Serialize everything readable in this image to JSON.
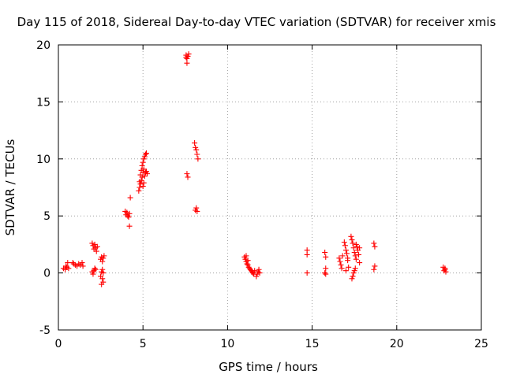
{
  "chart_data": {
    "type": "scatter",
    "title": "Day 115 of 2018, Sidereal Day-to-day VTEC variation (SDTVAR) for receiver xmis",
    "xlabel": "GPS time / hours",
    "ylabel": "SDTVAR / TECUs",
    "xlim": [
      0,
      25
    ],
    "ylim": [
      -5,
      20
    ],
    "xticks": [
      0,
      5,
      10,
      15,
      20,
      25
    ],
    "yticks": [
      -5,
      0,
      5,
      10,
      15,
      20
    ],
    "grid": true,
    "marker": "plus",
    "color": "#ff0000",
    "series": [
      {
        "name": "SDTVAR",
        "points": [
          [
            0.3,
            0.4
          ],
          [
            0.4,
            0.3
          ],
          [
            0.45,
            0.6
          ],
          [
            0.5,
            0.5
          ],
          [
            0.55,
            0.9
          ],
          [
            0.6,
            0.4
          ],
          [
            0.85,
            0.9
          ],
          [
            0.9,
            0.8
          ],
          [
            1.0,
            0.7
          ],
          [
            1.1,
            0.6
          ],
          [
            1.2,
            0.8
          ],
          [
            1.3,
            0.7
          ],
          [
            1.4,
            0.9
          ],
          [
            1.45,
            0.6
          ],
          [
            2.0,
            2.6
          ],
          [
            2.05,
            2.4
          ],
          [
            2.1,
            2.1
          ],
          [
            2.15,
            2.5
          ],
          [
            2.2,
            2.2
          ],
          [
            2.25,
            1.9
          ],
          [
            2.3,
            2.3
          ],
          [
            2.0,
            0.1
          ],
          [
            2.05,
            -0.1
          ],
          [
            2.1,
            0.2
          ],
          [
            2.15,
            0.4
          ],
          [
            2.2,
            0.3
          ],
          [
            2.5,
            1.2
          ],
          [
            2.55,
            1.4
          ],
          [
            2.6,
            1.0
          ],
          [
            2.65,
            1.3
          ],
          [
            2.7,
            1.5
          ],
          [
            2.5,
            -0.3
          ],
          [
            2.55,
            0.1
          ],
          [
            2.6,
            -0.5
          ],
          [
            2.65,
            -0.8
          ],
          [
            2.55,
            -1.0
          ],
          [
            2.6,
            0.3
          ],
          [
            2.65,
            0.0
          ],
          [
            3.95,
            5.4
          ],
          [
            4.0,
            5.1
          ],
          [
            4.05,
            5.3
          ],
          [
            4.1,
            5.0
          ],
          [
            4.15,
            4.9
          ],
          [
            4.2,
            5.2
          ],
          [
            4.25,
            6.6
          ],
          [
            4.2,
            4.1
          ],
          [
            4.75,
            7.2
          ],
          [
            4.8,
            7.5
          ],
          [
            4.85,
            7.8
          ],
          [
            4.9,
            8.1
          ],
          [
            4.95,
            8.4
          ],
          [
            5.0,
            8.8
          ],
          [
            5.05,
            9.1
          ],
          [
            4.8,
            8.0
          ],
          [
            4.85,
            8.6
          ],
          [
            4.9,
            9.0
          ],
          [
            4.95,
            9.4
          ],
          [
            5.0,
            9.7
          ],
          [
            5.05,
            10.0
          ],
          [
            5.1,
            10.2
          ],
          [
            5.15,
            10.4
          ],
          [
            5.2,
            10.5
          ],
          [
            5.1,
            8.5
          ],
          [
            5.15,
            8.8
          ],
          [
            5.2,
            8.9
          ],
          [
            5.25,
            8.7
          ],
          [
            5.0,
            7.6
          ],
          [
            5.05,
            7.9
          ],
          [
            7.55,
            19.1
          ],
          [
            7.6,
            18.8
          ],
          [
            7.65,
            19.0
          ],
          [
            7.6,
            18.4
          ],
          [
            7.55,
            18.9
          ],
          [
            7.7,
            19.2
          ],
          [
            7.6,
            8.7
          ],
          [
            7.65,
            8.4
          ],
          [
            8.05,
            11.4
          ],
          [
            8.1,
            11.0
          ],
          [
            8.15,
            10.8
          ],
          [
            8.2,
            10.4
          ],
          [
            8.25,
            10.0
          ],
          [
            8.1,
            5.5
          ],
          [
            8.15,
            5.7
          ],
          [
            8.2,
            5.4
          ],
          [
            11.0,
            1.4
          ],
          [
            11.05,
            1.2
          ],
          [
            11.1,
            1.0
          ],
          [
            11.15,
            0.8
          ],
          [
            11.2,
            0.7
          ],
          [
            11.25,
            0.5
          ],
          [
            11.3,
            0.4
          ],
          [
            11.35,
            0.3
          ],
          [
            11.4,
            0.2
          ],
          [
            11.45,
            0.1
          ],
          [
            11.5,
            0.0
          ],
          [
            11.55,
            -0.1
          ],
          [
            11.6,
            0.2
          ],
          [
            11.7,
            -0.3
          ],
          [
            11.75,
            -0.1
          ],
          [
            11.8,
            0.1
          ],
          [
            11.85,
            0.3
          ],
          [
            11.9,
            0.0
          ],
          [
            11.1,
            1.5
          ],
          [
            11.2,
            1.1
          ],
          [
            14.7,
            2.0
          ],
          [
            14.7,
            1.6
          ],
          [
            14.7,
            0.0
          ],
          [
            15.75,
            1.8
          ],
          [
            15.8,
            1.4
          ],
          [
            15.8,
            0.4
          ],
          [
            15.75,
            0.0
          ],
          [
            15.8,
            -0.1
          ],
          [
            16.6,
            1.3
          ],
          [
            16.65,
            1.0
          ],
          [
            16.7,
            0.7
          ],
          [
            16.75,
            0.4
          ],
          [
            16.8,
            1.5
          ],
          [
            16.9,
            2.7
          ],
          [
            16.95,
            2.4
          ],
          [
            17.0,
            2.0
          ],
          [
            17.05,
            1.7
          ],
          [
            17.1,
            1.1
          ],
          [
            17.15,
            0.5
          ],
          [
            17.0,
            0.2
          ],
          [
            17.1,
            1.3
          ],
          [
            17.3,
            3.2
          ],
          [
            17.35,
            2.9
          ],
          [
            17.4,
            2.6
          ],
          [
            17.45,
            2.2
          ],
          [
            17.5,
            1.8
          ],
          [
            17.55,
            1.5
          ],
          [
            17.6,
            1.2
          ],
          [
            17.35,
            -0.5
          ],
          [
            17.4,
            -0.3
          ],
          [
            17.45,
            0.0
          ],
          [
            17.5,
            0.2
          ],
          [
            17.55,
            0.4
          ],
          [
            17.6,
            2.5
          ],
          [
            17.65,
            2.3
          ],
          [
            17.7,
            2.0
          ],
          [
            17.75,
            1.6
          ],
          [
            17.8,
            0.9
          ],
          [
            17.8,
            2.2
          ],
          [
            18.65,
            2.6
          ],
          [
            18.7,
            2.3
          ],
          [
            18.7,
            0.6
          ],
          [
            18.65,
            0.3
          ],
          [
            22.75,
            0.5
          ],
          [
            22.8,
            0.2
          ],
          [
            22.85,
            0.4
          ],
          [
            22.9,
            0.1
          ],
          [
            22.85,
            0.3
          ]
        ]
      }
    ]
  }
}
